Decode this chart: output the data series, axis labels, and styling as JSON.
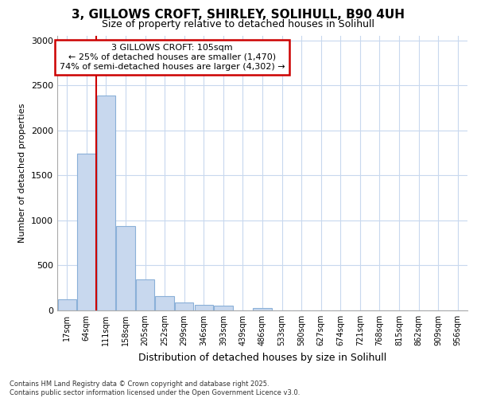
{
  "title_line1": "3, GILLOWS CROFT, SHIRLEY, SOLIHULL, B90 4UH",
  "title_line2": "Size of property relative to detached houses in Solihull",
  "xlabel": "Distribution of detached houses by size in Solihull",
  "ylabel": "Number of detached properties",
  "categories": [
    "17sqm",
    "64sqm",
    "111sqm",
    "158sqm",
    "205sqm",
    "252sqm",
    "299sqm",
    "346sqm",
    "393sqm",
    "439sqm",
    "486sqm",
    "533sqm",
    "580sqm",
    "627sqm",
    "674sqm",
    "721sqm",
    "768sqm",
    "815sqm",
    "862sqm",
    "909sqm",
    "956sqm"
  ],
  "values": [
    120,
    1740,
    2390,
    940,
    345,
    155,
    90,
    60,
    50,
    0,
    30,
    0,
    0,
    0,
    0,
    0,
    0,
    0,
    0,
    0,
    0
  ],
  "bar_color": "#c8d8ee",
  "bar_edgecolor": "#8ab0d8",
  "vline_color": "#cc0000",
  "vline_x_index": 2,
  "annotation_text": "3 GILLOWS CROFT: 105sqm\n← 25% of detached houses are smaller (1,470)\n74% of semi-detached houses are larger (4,302) →",
  "annotation_box_edgecolor": "#cc0000",
  "annotation_box_facecolor": "#ffffff",
  "ylim": [
    0,
    3050
  ],
  "yticks": [
    0,
    500,
    1000,
    1500,
    2000,
    2500,
    3000
  ],
  "footer_text": "Contains HM Land Registry data © Crown copyright and database right 2025.\nContains public sector information licensed under the Open Government Licence v3.0.",
  "bg_color": "#ffffff",
  "plot_bg_color": "#ffffff",
  "grid_color": "#c8d8ee"
}
